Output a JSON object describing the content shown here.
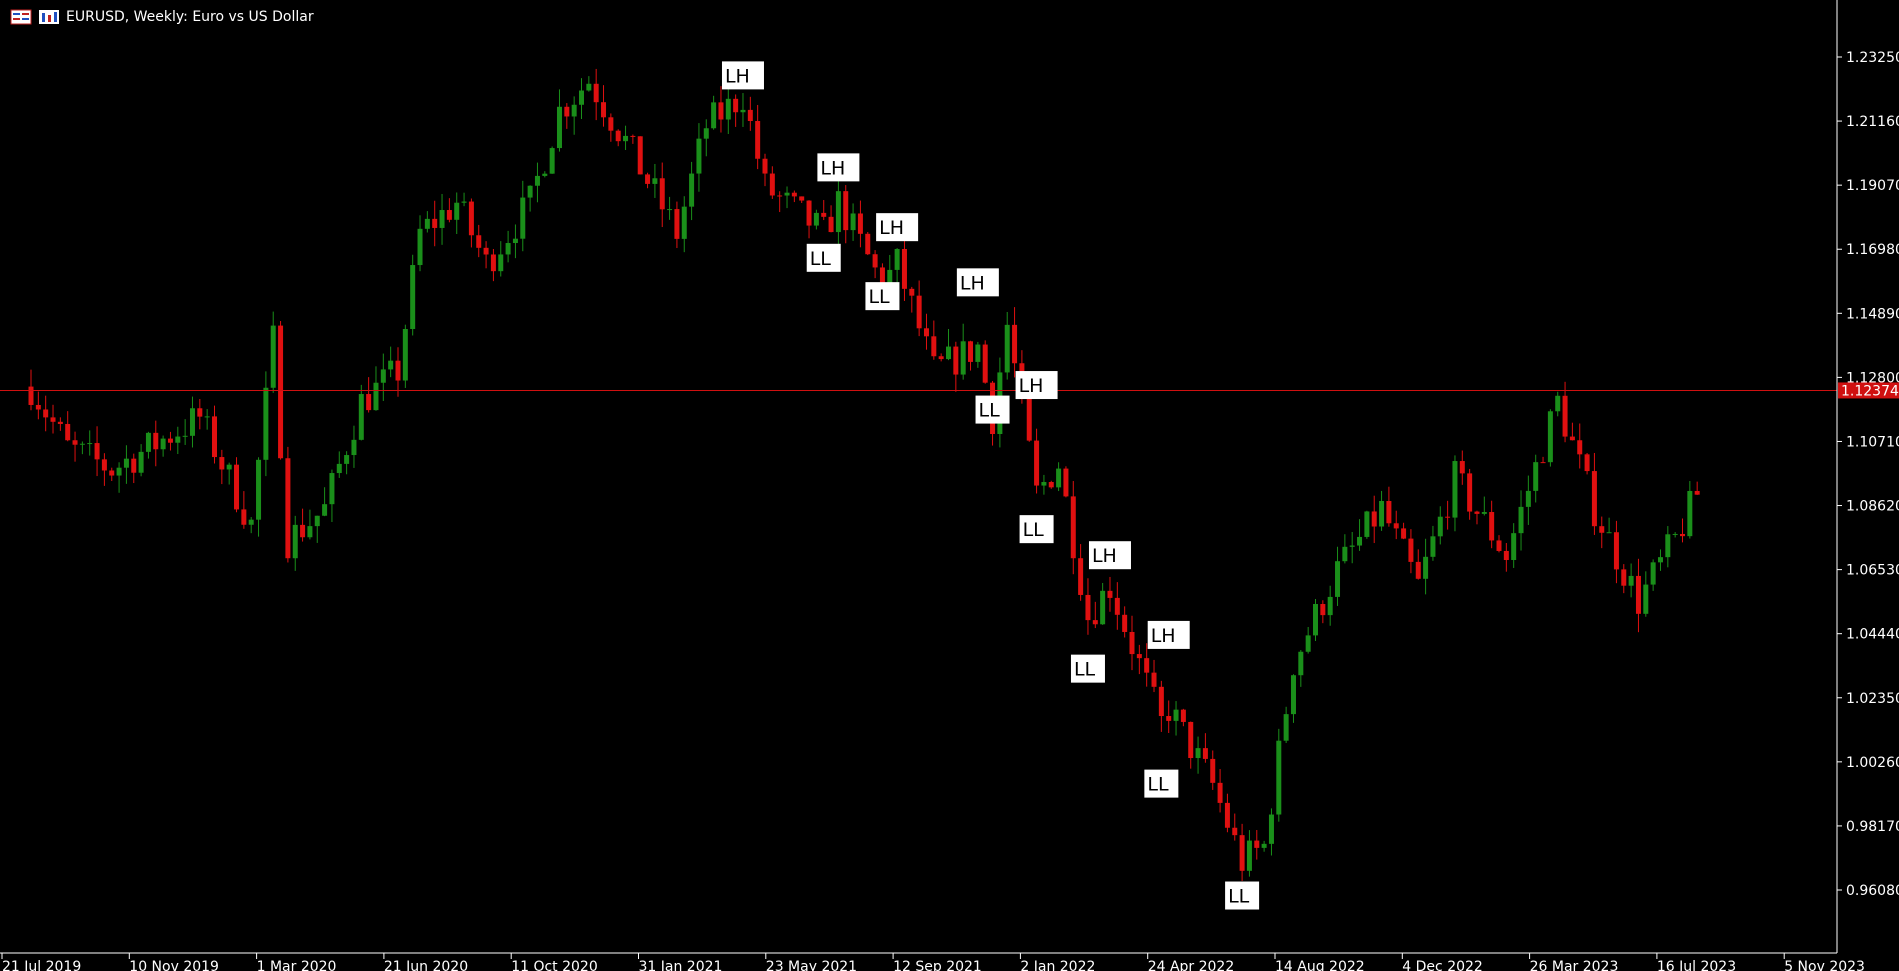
{
  "window": {
    "title": "EURUSD, Weekly:  Euro vs US Dollar"
  },
  "colors": {
    "background": "#000000",
    "bull": "#1a8f1a",
    "bear": "#e01010",
    "price_line": "#d01010",
    "axis": "#ffffff"
  },
  "chart_data": {
    "type": "candlestick",
    "symbol": "EURUSD",
    "timeframe": "Weekly",
    "y_ticks": [
      "1.23250",
      "1.21160",
      "1.19070",
      "1.16980",
      "1.14890",
      "1.12800",
      "1.10710",
      "1.08620",
      "1.06530",
      "1.04440",
      "1.02350",
      "1.00260",
      "0.98170",
      "0.96080"
    ],
    "x_ticks": [
      "21 Jul 2019",
      "10 Nov 2019",
      "1 Mar 2020",
      "21 Jun 2020",
      "11 Oct 2020",
      "31 Jan 2021",
      "23 May 2021",
      "12 Sep 2021",
      "2 Jan 2022",
      "24 Apr 2022",
      "14 Aug 2022",
      "4 Dec 2022",
      "26 Mar 2023",
      "16 Jul 2023",
      "5 Nov 2023"
    ],
    "ylim": [
      0.951,
      1.252
    ],
    "current_price": "1.12374",
    "annotations": [
      {
        "label": "LH",
        "date": "2021-05-30",
        "price": 1.2265
      },
      {
        "label": "LL",
        "date": "2021-08-15",
        "price": 1.167
      },
      {
        "label": "LH",
        "date": "2021-08-29",
        "price": 1.1965
      },
      {
        "label": "LL",
        "date": "2021-10-10",
        "price": 1.1545
      },
      {
        "label": "LH",
        "date": "2021-10-24",
        "price": 1.177
      },
      {
        "label": "LH",
        "date": "2022-01-09",
        "price": 1.159
      },
      {
        "label": "LL",
        "date": "2022-01-23",
        "price": 1.1175
      },
      {
        "label": "LH",
        "date": "2022-03-06",
        "price": 1.1255
      },
      {
        "label": "LL",
        "date": "2022-03-06",
        "price": 1.0785
      },
      {
        "label": "LH",
        "date": "2022-05-15",
        "price": 1.07
      },
      {
        "label": "LL",
        "date": "2022-04-24",
        "price": 1.033
      },
      {
        "label": "LH",
        "date": "2022-07-10",
        "price": 1.044
      },
      {
        "label": "LL",
        "date": "2022-07-03",
        "price": 0.9955
      },
      {
        "label": "LL",
        "date": "2022-09-18",
        "price": 0.959
      }
    ],
    "ohlc_anchors": [
      [
        "2019-07-21",
        1.125
      ],
      [
        "2019-08-25",
        1.105
      ],
      [
        "2019-10-06",
        1.098
      ],
      [
        "2019-11-10",
        1.105
      ],
      [
        "2019-12-29",
        1.115
      ],
      [
        "2020-02-16",
        1.08
      ],
      [
        "2020-03-08",
        1.14
      ],
      [
        "2020-03-22",
        1.075
      ],
      [
        "2020-04-26",
        1.085
      ],
      [
        "2020-05-31",
        1.12
      ],
      [
        "2020-07-05",
        1.13
      ],
      [
        "2020-07-26",
        1.175
      ],
      [
        "2020-08-30",
        1.185
      ],
      [
        "2020-09-27",
        1.165
      ],
      [
        "2020-11-08",
        1.185
      ],
      [
        "2020-12-06",
        1.215
      ],
      [
        "2021-01-03",
        1.225
      ],
      [
        "2021-02-07",
        1.205
      ],
      [
        "2021-03-28",
        1.175
      ],
      [
        "2021-04-25",
        1.21
      ],
      [
        "2021-05-30",
        1.22
      ],
      [
        "2021-06-20",
        1.19
      ],
      [
        "2021-08-15",
        1.175
      ],
      [
        "2021-08-29",
        1.185
      ],
      [
        "2021-10-10",
        1.158
      ],
      [
        "2021-10-24",
        1.165
      ],
      [
        "2021-11-28",
        1.13
      ],
      [
        "2022-01-09",
        1.138
      ],
      [
        "2022-01-23",
        1.115
      ],
      [
        "2022-02-06",
        1.145
      ],
      [
        "2022-03-06",
        1.09
      ],
      [
        "2022-03-27",
        1.1
      ],
      [
        "2022-04-24",
        1.05
      ],
      [
        "2022-05-15",
        1.06
      ],
      [
        "2022-07-03",
        1.015
      ],
      [
        "2022-07-10",
        1.02
      ],
      [
        "2022-08-21",
        0.995
      ],
      [
        "2022-09-18",
        0.97
      ],
      [
        "2022-10-09",
        0.975
      ],
      [
        "2022-11-06",
        1.035
      ],
      [
        "2022-12-18",
        1.065
      ],
      [
        "2023-01-29",
        1.085
      ],
      [
        "2023-03-05",
        1.06
      ],
      [
        "2023-04-09",
        1.095
      ],
      [
        "2023-05-28",
        1.07
      ],
      [
        "2023-07-16",
        1.12
      ],
      [
        "2023-08-20",
        1.085
      ],
      [
        "2023-10-01",
        1.055
      ],
      [
        "2023-11-05",
        1.075
      ],
      [
        "2023-11-26",
        1.09
      ]
    ]
  }
}
